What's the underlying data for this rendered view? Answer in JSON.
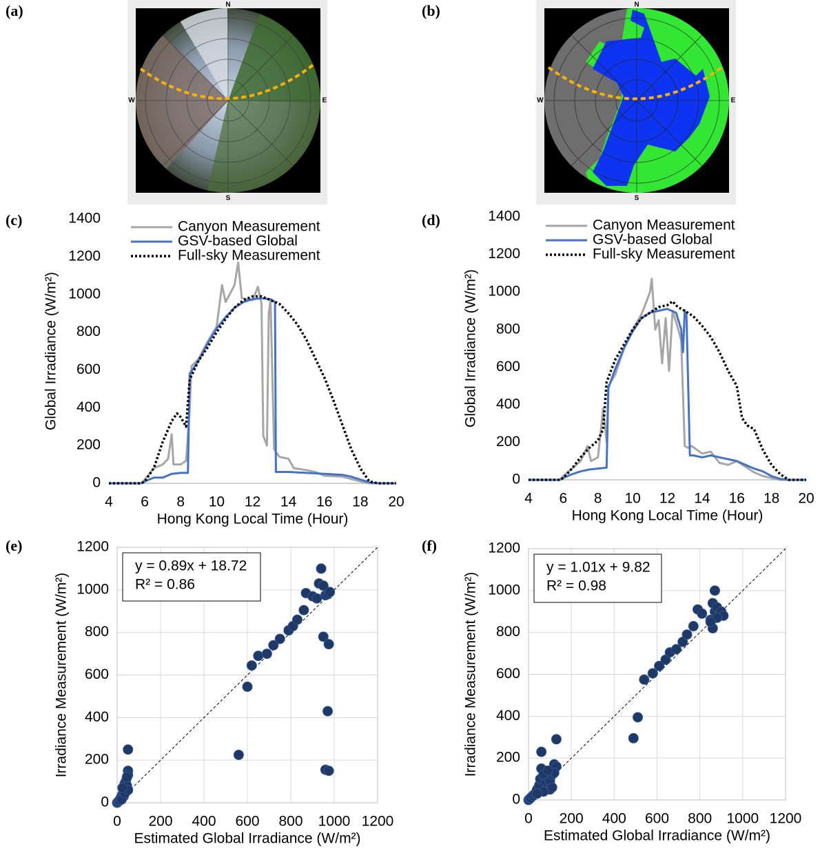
{
  "images": [
    {
      "label": "(a)",
      "compass": [
        "N",
        "E",
        "S",
        "W"
      ]
    },
    {
      "label": "(b)",
      "compass": [
        "N",
        "E",
        "S",
        "W"
      ]
    }
  ],
  "chart_data": [
    {
      "type": "line",
      "label": "(c)",
      "x_label": "Hong Kong Local Time (Hour)",
      "y_label": "Global Irradiance (W/m²)",
      "xlim": [
        4,
        20
      ],
      "xticks": [
        4,
        6,
        8,
        10,
        12,
        14,
        16,
        18,
        20
      ],
      "ylim": [
        0,
        1400
      ],
      "yticks": [
        0,
        200,
        400,
        600,
        800,
        1000,
        1200,
        1400
      ],
      "grid": false,
      "legend": "upper-left",
      "series": [
        {
          "name": "Canyon Measurement",
          "color": "#a6a6a6",
          "style": "solid",
          "x": [
            4,
            5.8,
            6,
            6.5,
            7,
            7.3,
            7.5,
            7.6,
            8,
            8.3,
            8.5,
            8.6,
            9,
            9.5,
            10,
            10.3,
            10.5,
            11,
            11.2,
            11.4,
            12,
            12.3,
            12.5,
            12.6,
            12.8,
            12.9,
            13,
            13.2,
            13.5,
            14,
            14.3,
            15,
            15.5,
            16,
            17,
            18,
            18.5,
            20
          ],
          "values": [
            0,
            0,
            20,
            80,
            100,
            130,
            260,
            100,
            100,
            120,
            400,
            620,
            660,
            750,
            830,
            1050,
            960,
            1050,
            1170,
            980,
            970,
            1040,
            950,
            250,
            200,
            900,
            970,
            180,
            140,
            130,
            80,
            70,
            60,
            40,
            35,
            10,
            0,
            0
          ]
        },
        {
          "name": "GSV-based Global",
          "color": "#4472c4",
          "style": "solid",
          "x": [
            4,
            5.8,
            6,
            6.5,
            7,
            7.5,
            8,
            8.4,
            8.5,
            9,
            9.5,
            10,
            10.5,
            11,
            11.5,
            12,
            12.5,
            13,
            13.25,
            13.3,
            14,
            15,
            16,
            17,
            17.5,
            18,
            18.5,
            19,
            20
          ],
          "values": [
            0,
            0,
            10,
            30,
            30,
            50,
            55,
            55,
            580,
            650,
            740,
            820,
            880,
            930,
            960,
            975,
            980,
            975,
            960,
            60,
            60,
            55,
            50,
            45,
            35,
            20,
            5,
            0,
            0
          ]
        },
        {
          "name": "Full-sky Measurement",
          "color": "#000000",
          "style": "dotted",
          "x": [
            4,
            5.8,
            6,
            6.5,
            7,
            7.5,
            7.8,
            8,
            8.3,
            8.5,
            9,
            9.5,
            10,
            10.5,
            11,
            11.5,
            12,
            12.5,
            13,
            13.5,
            14,
            14.5,
            15,
            15.5,
            16,
            16.5,
            17,
            17.5,
            18,
            18.5,
            19,
            20
          ],
          "values": [
            0,
            0,
            10,
            80,
            220,
            330,
            370,
            350,
            300,
            550,
            650,
            720,
            800,
            870,
            930,
            970,
            990,
            990,
            970,
            950,
            900,
            840,
            760,
            660,
            560,
            440,
            310,
            180,
            80,
            10,
            0,
            0
          ]
        }
      ]
    },
    {
      "type": "line",
      "label": "(d)",
      "x_label": "Hong Kong Local Time (Hour)",
      "y_label": "Global Irradiance (W/m²)",
      "xlim": [
        4,
        20
      ],
      "xticks": [
        4,
        6,
        8,
        10,
        12,
        14,
        16,
        18,
        20
      ],
      "ylim": [
        0,
        1400
      ],
      "yticks": [
        0,
        200,
        400,
        600,
        800,
        1000,
        1200,
        1400
      ],
      "grid": false,
      "legend": "upper-left",
      "series": [
        {
          "name": "Canyon Measurement",
          "color": "#a6a6a6",
          "style": "solid",
          "x": [
            4,
            5.8,
            6,
            6.5,
            7,
            7.4,
            7.6,
            8,
            8.3,
            8.5,
            8.6,
            9,
            9.5,
            10,
            10.5,
            10.8,
            11,
            11.1,
            11.3,
            11.5,
            11.7,
            11.9,
            12.1,
            12.3,
            12.6,
            12.8,
            13,
            13.2,
            13.4,
            14,
            14.5,
            15,
            15.5,
            16,
            16.5,
            17,
            17.5,
            18,
            18.5,
            20
          ],
          "values": [
            0,
            0,
            20,
            60,
            100,
            180,
            100,
            120,
            380,
            200,
            500,
            560,
            700,
            800,
            880,
            950,
            1000,
            1070,
            800,
            850,
            620,
            860,
            580,
            900,
            810,
            740,
            180,
            170,
            180,
            140,
            150,
            90,
            80,
            100,
            70,
            40,
            20,
            10,
            0,
            0
          ]
        },
        {
          "name": "GSV-based Global",
          "color": "#4472c4",
          "style": "solid",
          "x": [
            4,
            5.8,
            6,
            6.5,
            7,
            7.5,
            8,
            8.5,
            8.6,
            9,
            9.5,
            10,
            10.5,
            11,
            11.5,
            12,
            12.5,
            12.8,
            12.9,
            13,
            13.1,
            13.3,
            13.5,
            14,
            14.5,
            15,
            15.5,
            16,
            16.5,
            17,
            17.5,
            18,
            18.5,
            19,
            20
          ],
          "values": [
            0,
            0,
            10,
            30,
            45,
            55,
            60,
            65,
            490,
            590,
            700,
            790,
            860,
            890,
            900,
            910,
            890,
            800,
            680,
            900,
            880,
            130,
            130,
            120,
            130,
            120,
            110,
            100,
            80,
            60,
            45,
            20,
            5,
            0,
            0
          ]
        },
        {
          "name": "Full-sky Measurement",
          "color": "#000000",
          "style": "dotted",
          "x": [
            4,
            5.8,
            6,
            6.5,
            7,
            7.5,
            8,
            8.3,
            8.5,
            9,
            9.5,
            10,
            10.5,
            11,
            11.5,
            12,
            12.3,
            12.6,
            13,
            13.5,
            14,
            14.5,
            15,
            15.5,
            16,
            16.3,
            16.6,
            17,
            17.5,
            18,
            18.5,
            19,
            20
          ],
          "values": [
            0,
            0,
            10,
            60,
            120,
            170,
            210,
            270,
            520,
            640,
            720,
            800,
            860,
            890,
            920,
            930,
            950,
            920,
            900,
            870,
            820,
            760,
            680,
            580,
            500,
            330,
            290,
            270,
            160,
            80,
            30,
            0,
            0
          ]
        }
      ]
    },
    {
      "type": "scatter",
      "label": "(e)",
      "x_label": "Estimated Global Irradiance (W/m²)",
      "y_label": "Irradiance Measurement (W/m²)",
      "xlim": [
        0,
        1200
      ],
      "xticks": [
        0,
        200,
        400,
        600,
        800,
        1000,
        1200
      ],
      "ylim": [
        0,
        1200
      ],
      "yticks": [
        0,
        200,
        400,
        600,
        800,
        1000,
        1200
      ],
      "grid": true,
      "color": "#1f3864",
      "annotations": [
        "y = 0.89x + 18.72",
        "R² = 0.86"
      ],
      "x": [
        0,
        5,
        10,
        15,
        20,
        25,
        30,
        35,
        40,
        45,
        50,
        50,
        50,
        45,
        40,
        30,
        20,
        35,
        50,
        25,
        560,
        600,
        620,
        650,
        690,
        720,
        750,
        790,
        810,
        830,
        860,
        870,
        900,
        920,
        930,
        940,
        950,
        960,
        970,
        980,
        950,
        975,
        970,
        960,
        975
      ],
      "y": [
        0,
        5,
        10,
        20,
        30,
        40,
        60,
        90,
        100,
        80,
        150,
        250,
        130,
        120,
        50,
        30,
        15,
        45,
        60,
        70,
        225,
        545,
        645,
        690,
        700,
        740,
        770,
        810,
        830,
        860,
        905,
        985,
        970,
        960,
        1030,
        1100,
        1020,
        975,
        980,
        990,
        780,
        745,
        430,
        155,
        150
      ]
    },
    {
      "type": "scatter",
      "label": "(f)",
      "x_label": "Estimated Global Irradiance (W/m²)",
      "y_label": "Irradiance Measurement (W/m²)",
      "xlim": [
        0,
        1200
      ],
      "xticks": [
        0,
        200,
        400,
        600,
        800,
        1000,
        1200
      ],
      "ylim": [
        0,
        1200
      ],
      "yticks": [
        0,
        200,
        400,
        600,
        800,
        1000,
        1200
      ],
      "grid": true,
      "color": "#1f3864",
      "annotations": [
        "y = 1.01x + 9.82",
        "R² = 0.98"
      ],
      "x": [
        0,
        5,
        10,
        20,
        30,
        40,
        50,
        55,
        60,
        60,
        70,
        80,
        90,
        100,
        110,
        120,
        130,
        130,
        120,
        100,
        70,
        90,
        40,
        110,
        490,
        510,
        540,
        580,
        610,
        640,
        660,
        690,
        720,
        740,
        770,
        790,
        810,
        850,
        860,
        860,
        870,
        870,
        880,
        890,
        900,
        910,
        880,
        850
      ],
      "y": [
        0,
        5,
        10,
        20,
        30,
        50,
        70,
        100,
        150,
        230,
        120,
        80,
        60,
        90,
        120,
        170,
        290,
        160,
        130,
        50,
        40,
        140,
        30,
        60,
        295,
        395,
        575,
        605,
        640,
        670,
        705,
        720,
        755,
        790,
        830,
        910,
        890,
        860,
        820,
        940,
        1000,
        900,
        920,
        880,
        900,
        880,
        870,
        850
      ]
    }
  ]
}
